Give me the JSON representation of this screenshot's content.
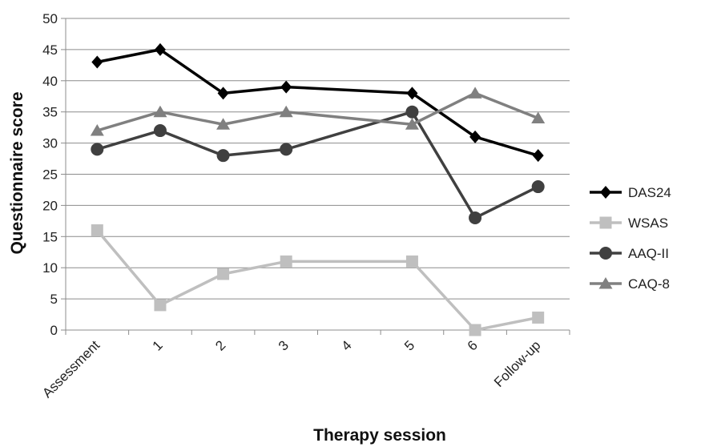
{
  "chart_data": {
    "type": "line",
    "title": "",
    "xlabel": "Therapy session",
    "ylabel": "Questionnaire score",
    "categories": [
      "Assessment",
      "1",
      "2",
      "3",
      "4",
      "5",
      "6",
      "Follow-up"
    ],
    "ylim": [
      0,
      50
    ],
    "yticks": [
      0,
      5,
      10,
      15,
      20,
      25,
      30,
      35,
      40,
      45,
      50
    ],
    "grid": true,
    "legend_position": "right",
    "series": [
      {
        "name": "DAS24",
        "color": "#000000",
        "marker": "diamond",
        "values": [
          43,
          45,
          38,
          39,
          null,
          38,
          31,
          28
        ]
      },
      {
        "name": "WSAS",
        "color": "#bfbfbf",
        "marker": "square",
        "values": [
          16,
          4,
          9,
          11,
          null,
          11,
          0,
          2
        ]
      },
      {
        "name": "AAQ-II",
        "color": "#404040",
        "marker": "circle",
        "values": [
          29,
          32,
          28,
          29,
          null,
          35,
          18,
          23
        ]
      },
      {
        "name": "CAQ-8",
        "color": "#808080",
        "marker": "triangle",
        "values": [
          32,
          35,
          33,
          35,
          null,
          33,
          38,
          34
        ]
      }
    ]
  }
}
